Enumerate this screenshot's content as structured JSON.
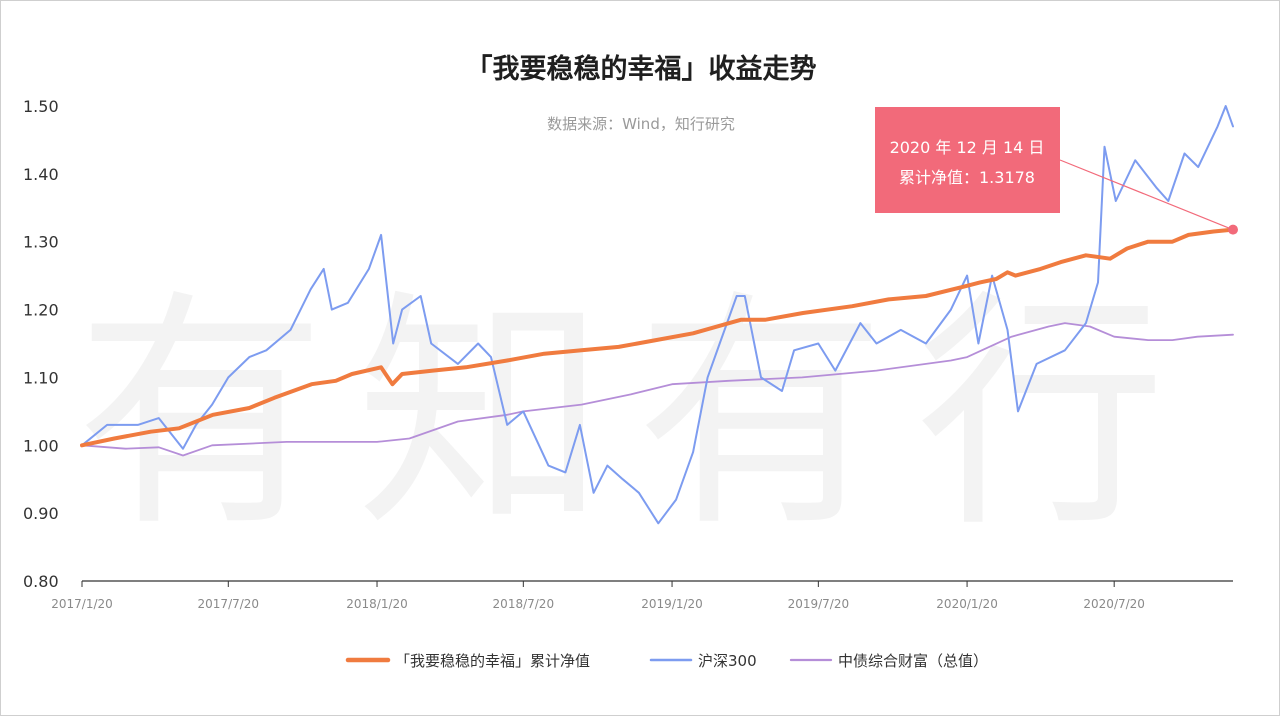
{
  "chart_data": {
    "type": "line",
    "title": "「我要稳稳的幸福」收益走势",
    "subtitle": "数据来源：Wind，知行研究",
    "watermark": "有知有行",
    "ylim": [
      0.8,
      1.5
    ],
    "yticks": [
      "0.80",
      "0.90",
      "1.00",
      "1.10",
      "1.20",
      "1.30",
      "1.40",
      "1.50"
    ],
    "xlim": [
      "2017-01-20",
      "2020-12-14"
    ],
    "xticks": [
      {
        "date": "2017-01-20",
        "label": "2017/1/20"
      },
      {
        "date": "2017-07-20",
        "label": "2017/7/20"
      },
      {
        "date": "2018-01-20",
        "label": "2018/1/20"
      },
      {
        "date": "2018-07-20",
        "label": "2018/7/20"
      },
      {
        "date": "2019-01-20",
        "label": "2019/1/20"
      },
      {
        "date": "2019-07-20",
        "label": "2019/7/20"
      },
      {
        "date": "2020-01-20",
        "label": "2020/1/20"
      },
      {
        "date": "2020-07-20",
        "label": "2020/7/20"
      }
    ],
    "legend_position": "bottom",
    "grid": false,
    "tooltip": {
      "date": "2020-12-14",
      "line1": "2020 年 12 月 14 日",
      "line2": "累计净值：1.3178",
      "value": 1.3178
    },
    "series": [
      {
        "name": "「我要稳稳的幸福」累计净值",
        "color": "#f07b3f",
        "points": [
          [
            "2017-01-20",
            1.0
          ],
          [
            "2017-03-01",
            1.01
          ],
          [
            "2017-04-15",
            1.02
          ],
          [
            "2017-05-20",
            1.025
          ],
          [
            "2017-07-01",
            1.045
          ],
          [
            "2017-08-15",
            1.055
          ],
          [
            "2017-09-15",
            1.07
          ],
          [
            "2017-10-31",
            1.09
          ],
          [
            "2017-11-30",
            1.095
          ],
          [
            "2017-12-20",
            1.105
          ],
          [
            "2018-01-25",
            1.115
          ],
          [
            "2018-02-08",
            1.09
          ],
          [
            "2018-02-20",
            1.105
          ],
          [
            "2018-03-30",
            1.11
          ],
          [
            "2018-05-10",
            1.115
          ],
          [
            "2018-06-30",
            1.125
          ],
          [
            "2018-08-15",
            1.135
          ],
          [
            "2018-09-30",
            1.14
          ],
          [
            "2018-11-15",
            1.145
          ],
          [
            "2018-12-31",
            1.155
          ],
          [
            "2019-02-15",
            1.165
          ],
          [
            "2019-04-15",
            1.185
          ],
          [
            "2019-05-15",
            1.185
          ],
          [
            "2019-07-01",
            1.195
          ],
          [
            "2019-08-31",
            1.205
          ],
          [
            "2019-10-15",
            1.215
          ],
          [
            "2019-11-30",
            1.22
          ],
          [
            "2020-01-20",
            1.235
          ],
          [
            "2020-02-05",
            1.24
          ],
          [
            "2020-02-25",
            1.245
          ],
          [
            "2020-03-10",
            1.255
          ],
          [
            "2020-03-20",
            1.25
          ],
          [
            "2020-04-20",
            1.26
          ],
          [
            "2020-05-15",
            1.27
          ],
          [
            "2020-06-15",
            1.28
          ],
          [
            "2020-07-15",
            1.275
          ],
          [
            "2020-08-05",
            1.29
          ],
          [
            "2020-08-31",
            1.3
          ],
          [
            "2020-09-30",
            1.3
          ],
          [
            "2020-10-20",
            1.31
          ],
          [
            "2020-11-20",
            1.315
          ],
          [
            "2020-12-14",
            1.3178
          ]
        ]
      },
      {
        "name": "沪深300",
        "color": "#7d9cf0",
        "points": [
          [
            "2017-01-20",
            1.0
          ],
          [
            "2017-02-20",
            1.03
          ],
          [
            "2017-03-30",
            1.03
          ],
          [
            "2017-04-25",
            1.04
          ],
          [
            "2017-05-25",
            0.995
          ],
          [
            "2017-06-10",
            1.03
          ],
          [
            "2017-06-30",
            1.06
          ],
          [
            "2017-07-20",
            1.1
          ],
          [
            "2017-08-15",
            1.13
          ],
          [
            "2017-09-05",
            1.14
          ],
          [
            "2017-10-05",
            1.17
          ],
          [
            "2017-10-30",
            1.23
          ],
          [
            "2017-11-15",
            1.26
          ],
          [
            "2017-11-25",
            1.2
          ],
          [
            "2017-12-15",
            1.21
          ],
          [
            "2018-01-10",
            1.26
          ],
          [
            "2018-01-25",
            1.31
          ],
          [
            "2018-02-09",
            1.15
          ],
          [
            "2018-02-20",
            1.2
          ],
          [
            "2018-03-15",
            1.22
          ],
          [
            "2018-03-28",
            1.15
          ],
          [
            "2018-04-30",
            1.12
          ],
          [
            "2018-05-25",
            1.15
          ],
          [
            "2018-06-10",
            1.13
          ],
          [
            "2018-06-30",
            1.03
          ],
          [
            "2018-07-20",
            1.05
          ],
          [
            "2018-08-20",
            0.97
          ],
          [
            "2018-09-10",
            0.96
          ],
          [
            "2018-09-28",
            1.03
          ],
          [
            "2018-10-15",
            0.93
          ],
          [
            "2018-11-01",
            0.97
          ],
          [
            "2018-11-20",
            0.95
          ],
          [
            "2018-12-10",
            0.93
          ],
          [
            "2019-01-03",
            0.885
          ],
          [
            "2019-01-25",
            0.92
          ],
          [
            "2019-02-15",
            0.99
          ],
          [
            "2019-03-05",
            1.1
          ],
          [
            "2019-03-20",
            1.15
          ],
          [
            "2019-04-10",
            1.22
          ],
          [
            "2019-04-20",
            1.22
          ],
          [
            "2019-05-10",
            1.1
          ],
          [
            "2019-06-05",
            1.08
          ],
          [
            "2019-06-20",
            1.14
          ],
          [
            "2019-07-20",
            1.15
          ],
          [
            "2019-08-10",
            1.11
          ],
          [
            "2019-09-10",
            1.18
          ],
          [
            "2019-09-30",
            1.15
          ],
          [
            "2019-10-30",
            1.17
          ],
          [
            "2019-11-30",
            1.15
          ],
          [
            "2019-12-31",
            1.2
          ],
          [
            "2020-01-20",
            1.25
          ],
          [
            "2020-02-03",
            1.15
          ],
          [
            "2020-02-20",
            1.25
          ],
          [
            "2020-03-10",
            1.17
          ],
          [
            "2020-03-23",
            1.05
          ],
          [
            "2020-04-15",
            1.12
          ],
          [
            "2020-05-20",
            1.14
          ],
          [
            "2020-06-15",
            1.18
          ],
          [
            "2020-06-30",
            1.24
          ],
          [
            "2020-07-08",
            1.44
          ],
          [
            "2020-07-22",
            1.36
          ],
          [
            "2020-08-15",
            1.42
          ],
          [
            "2020-09-10",
            1.38
          ],
          [
            "2020-09-25",
            1.36
          ],
          [
            "2020-10-15",
            1.43
          ],
          [
            "2020-11-01",
            1.41
          ],
          [
            "2020-11-25",
            1.47
          ],
          [
            "2020-12-05",
            1.5
          ],
          [
            "2020-12-14",
            1.47
          ]
        ]
      },
      {
        "name": "中债综合财富（总值）",
        "color": "#b58ed8",
        "points": [
          [
            "2017-01-20",
            1.0
          ],
          [
            "2017-03-15",
            0.995
          ],
          [
            "2017-04-25",
            0.997
          ],
          [
            "2017-05-25",
            0.985
          ],
          [
            "2017-06-30",
            1.0
          ],
          [
            "2017-09-30",
            1.005
          ],
          [
            "2017-11-30",
            1.005
          ],
          [
            "2018-01-20",
            1.005
          ],
          [
            "2018-03-01",
            1.01
          ],
          [
            "2018-04-30",
            1.035
          ],
          [
            "2018-06-30",
            1.045
          ],
          [
            "2018-07-20",
            1.05
          ],
          [
            "2018-09-30",
            1.06
          ],
          [
            "2018-11-30",
            1.075
          ],
          [
            "2019-01-20",
            1.09
          ],
          [
            "2019-03-31",
            1.095
          ],
          [
            "2019-06-30",
            1.1
          ],
          [
            "2019-09-30",
            1.11
          ],
          [
            "2019-12-31",
            1.125
          ],
          [
            "2020-01-20",
            1.13
          ],
          [
            "2020-03-15",
            1.16
          ],
          [
            "2020-04-30",
            1.175
          ],
          [
            "2020-05-20",
            1.18
          ],
          [
            "2020-06-20",
            1.175
          ],
          [
            "2020-07-20",
            1.16
          ],
          [
            "2020-08-31",
            1.155
          ],
          [
            "2020-09-30",
            1.155
          ],
          [
            "2020-10-31",
            1.16
          ],
          [
            "2020-12-14",
            1.163
          ]
        ]
      }
    ]
  }
}
